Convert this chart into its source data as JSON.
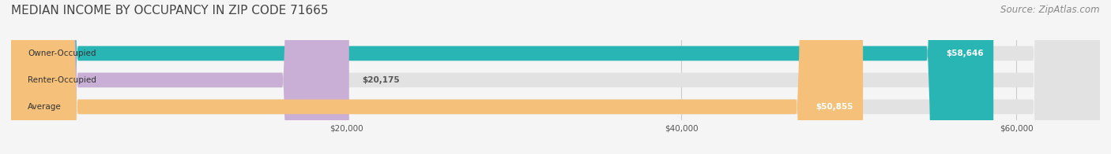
{
  "title": "MEDIAN INCOME BY OCCUPANCY IN ZIP CODE 71665",
  "source": "Source: ZipAtlas.com",
  "categories": [
    "Owner-Occupied",
    "Renter-Occupied",
    "Average"
  ],
  "values": [
    58646,
    20175,
    50855
  ],
  "bar_colors": [
    "#2ab5b5",
    "#c9aed6",
    "#f5c07a"
  ],
  "bar_labels": [
    "$58,646",
    "$20,175",
    "$50,855"
  ],
  "label_inside": [
    true,
    false,
    true
  ],
  "xmax": 65000,
  "xticks": [
    20000,
    40000,
    60000
  ],
  "xticklabels": [
    "$20,000",
    "$40,000",
    "$60,000"
  ],
  "background_color": "#f5f5f5",
  "bar_bg_color": "#e2e2e2",
  "title_fontsize": 11,
  "source_fontsize": 8.5
}
